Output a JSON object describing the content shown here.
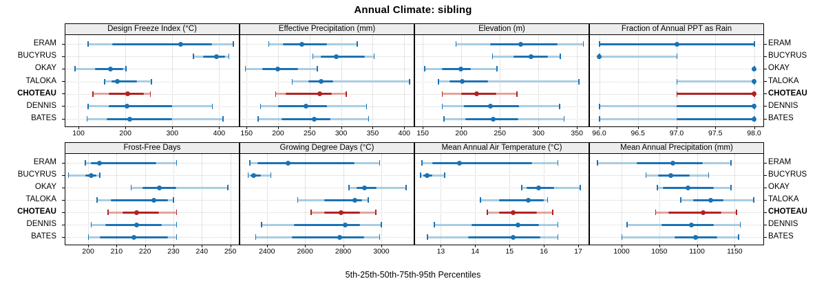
{
  "title": "Annual Climate: sibling",
  "caption": "5th-25th-50th-75th-95th Percentiles",
  "stations": [
    "ERAM",
    "BUCYRUS",
    "OKAY",
    "TALOKA",
    "CHOTEAU",
    "DENNIS",
    "BATES"
  ],
  "highlight_station": "CHOTEAU",
  "colors": {
    "series_dark": "#1a72b4",
    "series_light": "#a9cce2",
    "highlight_dark": "#b22222",
    "highlight_light": "#e2a39e",
    "strip_bg": "#ededed",
    "grid": "#c9c9c9",
    "border": "#000000"
  },
  "chart_data": {
    "type": "percentile-dotplot",
    "layout": "2 rows x 4 columns, station labels on left and right, shared caption",
    "percentile_labels": [
      "5th",
      "25th",
      "50th",
      "75th",
      "95th"
    ],
    "panels": [
      {
        "title": "Design Freeze Index (°C)",
        "xmin": 72,
        "xmax": 442,
        "tick_values": [
          100,
          200,
          300,
          400
        ],
        "tick_labels": [
          "100",
          "200",
          "300",
          "400"
        ],
        "values": {
          "ERAM": [
            120,
            172,
            318,
            385,
            430
          ],
          "BUCYRUS": [
            345,
            365,
            395,
            412,
            420
          ],
          "OKAY": [
            92,
            135,
            168,
            195,
            201
          ],
          "TALOKA": [
            155,
            170,
            183,
            225,
            255
          ],
          "CHOTEAU": [
            130,
            165,
            205,
            240,
            253
          ],
          "DENNIS": [
            120,
            165,
            203,
            300,
            385
          ],
          "BATES": [
            118,
            160,
            210,
            300,
            408
          ]
        }
      },
      {
        "title": "Effective Precipitation (mm)",
        "xmin": 140,
        "xmax": 415,
        "tick_values": [
          150,
          200,
          250,
          300,
          350,
          400
        ],
        "tick_labels": [
          "150",
          "200",
          "250",
          "300",
          "350",
          "400"
        ],
        "values": {
          "ERAM": [
            185,
            208,
            238,
            278,
            325
          ],
          "BUCYRUS": [
            255,
            268,
            292,
            338,
            352
          ],
          "OKAY": [
            148,
            175,
            200,
            232,
            262
          ],
          "TALOKA": [
            222,
            248,
            268,
            287,
            408
          ],
          "CHOTEAU": [
            196,
            212,
            266,
            285,
            308
          ],
          "DENNIS": [
            172,
            200,
            244,
            278,
            340
          ],
          "BATES": [
            168,
            205,
            257,
            283,
            343
          ]
        }
      },
      {
        "title": "Elevation (m)",
        "xmin": 140,
        "xmax": 365,
        "tick_values": [
          150,
          200,
          250,
          300,
          350
        ],
        "tick_labels": [
          "150",
          "200",
          "250",
          "300",
          "350"
        ],
        "values": {
          "ERAM": [
            193,
            237,
            277,
            325,
            358
          ],
          "BUCYRUS": [
            240,
            268,
            290,
            312,
            328
          ],
          "OKAY": [
            152,
            175,
            199,
            212,
            246
          ],
          "TALOKA": [
            170,
            185,
            201,
            235,
            352
          ],
          "CHOTEAU": [
            175,
            200,
            220,
            245,
            272
          ],
          "DENNIS": [
            175,
            203,
            238,
            275,
            327
          ],
          "BATES": [
            177,
            205,
            241,
            274,
            333
          ]
        }
      },
      {
        "title": "Fraction of Annual PPT as Rain",
        "xmin": 95.88,
        "xmax": 98.12,
        "tick_values": [
          96.0,
          96.5,
          97.0,
          97.5,
          98.0
        ],
        "tick_labels": [
          "96.0",
          "96.5",
          "97.0",
          "97.5",
          "98.0"
        ],
        "values": {
          "ERAM": [
            96,
            96,
            97,
            98,
            98
          ],
          "BUCYRUS": [
            96,
            96,
            96,
            96,
            97
          ],
          "OKAY": [
            98,
            98,
            98,
            98,
            98
          ],
          "TALOKA": [
            97,
            98,
            98,
            98,
            98
          ],
          "CHOTEAU": [
            97,
            97,
            98,
            98,
            98
          ],
          "DENNIS": [
            96,
            97,
            98,
            98,
            98
          ],
          "BATES": [
            96,
            97,
            98,
            98,
            98
          ]
        }
      },
      {
        "title": "Frost-Free Days",
        "xmin": 192,
        "xmax": 253,
        "tick_values": [
          200,
          210,
          220,
          230,
          240,
          250
        ],
        "tick_labels": [
          "200",
          "210",
          "220",
          "230",
          "240",
          "250"
        ],
        "values": {
          "ERAM": [
            199,
            201,
            204,
            224,
            231
          ],
          "BUCYRUS": [
            193,
            199,
            201,
            203,
            204
          ],
          "OKAY": [
            215,
            219,
            225,
            231,
            249
          ],
          "TALOKA": [
            203,
            208,
            223,
            228,
            230
          ],
          "CHOTEAU": [
            207,
            212,
            217,
            225,
            231
          ],
          "DENNIS": [
            201,
            206,
            217,
            226,
            231
          ],
          "BATES": [
            200,
            204,
            216,
            228,
            231
          ]
        }
      },
      {
        "title": "Growing Degree Days (°C)",
        "xmin": 2260,
        "xmax": 3170,
        "tick_values": [
          2400,
          2600,
          2800,
          3000
        ],
        "tick_labels": [
          "2400",
          "2600",
          "2800",
          "3000"
        ],
        "values": {
          "ERAM": [
            2310,
            2350,
            2510,
            2860,
            2990
          ],
          "BUCYRUS": [
            2300,
            2315,
            2330,
            2370,
            2420
          ],
          "OKAY": [
            2830,
            2870,
            2910,
            2975,
            3130
          ],
          "TALOKA": [
            2560,
            2700,
            2860,
            2900,
            2930
          ],
          "CHOTEAU": [
            2630,
            2700,
            2790,
            2890,
            2970
          ],
          "DENNIS": [
            2370,
            2540,
            2810,
            2890,
            3000
          ],
          "BATES": [
            2340,
            2530,
            2780,
            2910,
            2990
          ]
        }
      },
      {
        "title": "Mean Annual Air Temperature (°C)",
        "xmin": 12.25,
        "xmax": 17.3,
        "tick_values": [
          13,
          14,
          15,
          16,
          17
        ],
        "tick_labels": [
          "13",
          "14",
          "15",
          "16",
          "17"
        ],
        "values": {
          "ERAM": [
            12.45,
            12.75,
            13.55,
            15.65,
            16.4
          ],
          "BUCYRUS": [
            12.4,
            12.5,
            12.6,
            12.75,
            13.1
          ],
          "OKAY": [
            15.35,
            15.5,
            15.85,
            16.3,
            17.05
          ],
          "TALOKA": [
            14.15,
            14.7,
            15.55,
            16.0,
            16.1
          ],
          "CHOTEAU": [
            14.35,
            14.7,
            15.1,
            15.8,
            16.25
          ],
          "DENNIS": [
            12.8,
            13.9,
            15.25,
            15.85,
            16.4
          ],
          "BATES": [
            12.6,
            13.8,
            15.1,
            15.9,
            16.4
          ]
        }
      },
      {
        "title": "Mean Annual Precipitation (mm)",
        "xmin": 958,
        "xmax": 1188,
        "tick_values": [
          1000,
          1050,
          1100,
          1150
        ],
        "tick_labels": [
          "1000",
          "1050",
          "1100",
          "1150"
        ],
        "values": {
          "ERAM": [
            968,
            1020,
            1068,
            1108,
            1145
          ],
          "BUCYRUS": [
            1032,
            1048,
            1065,
            1090,
            1115
          ],
          "OKAY": [
            1047,
            1055,
            1088,
            1122,
            1145
          ],
          "TALOKA": [
            1078,
            1095,
            1118,
            1135,
            1175
          ],
          "CHOTEAU": [
            1045,
            1062,
            1108,
            1132,
            1152
          ],
          "DENNIS": [
            1007,
            1053,
            1093,
            1122,
            1157
          ],
          "BATES": [
            1000,
            1070,
            1098,
            1127,
            1155
          ]
        }
      }
    ]
  }
}
